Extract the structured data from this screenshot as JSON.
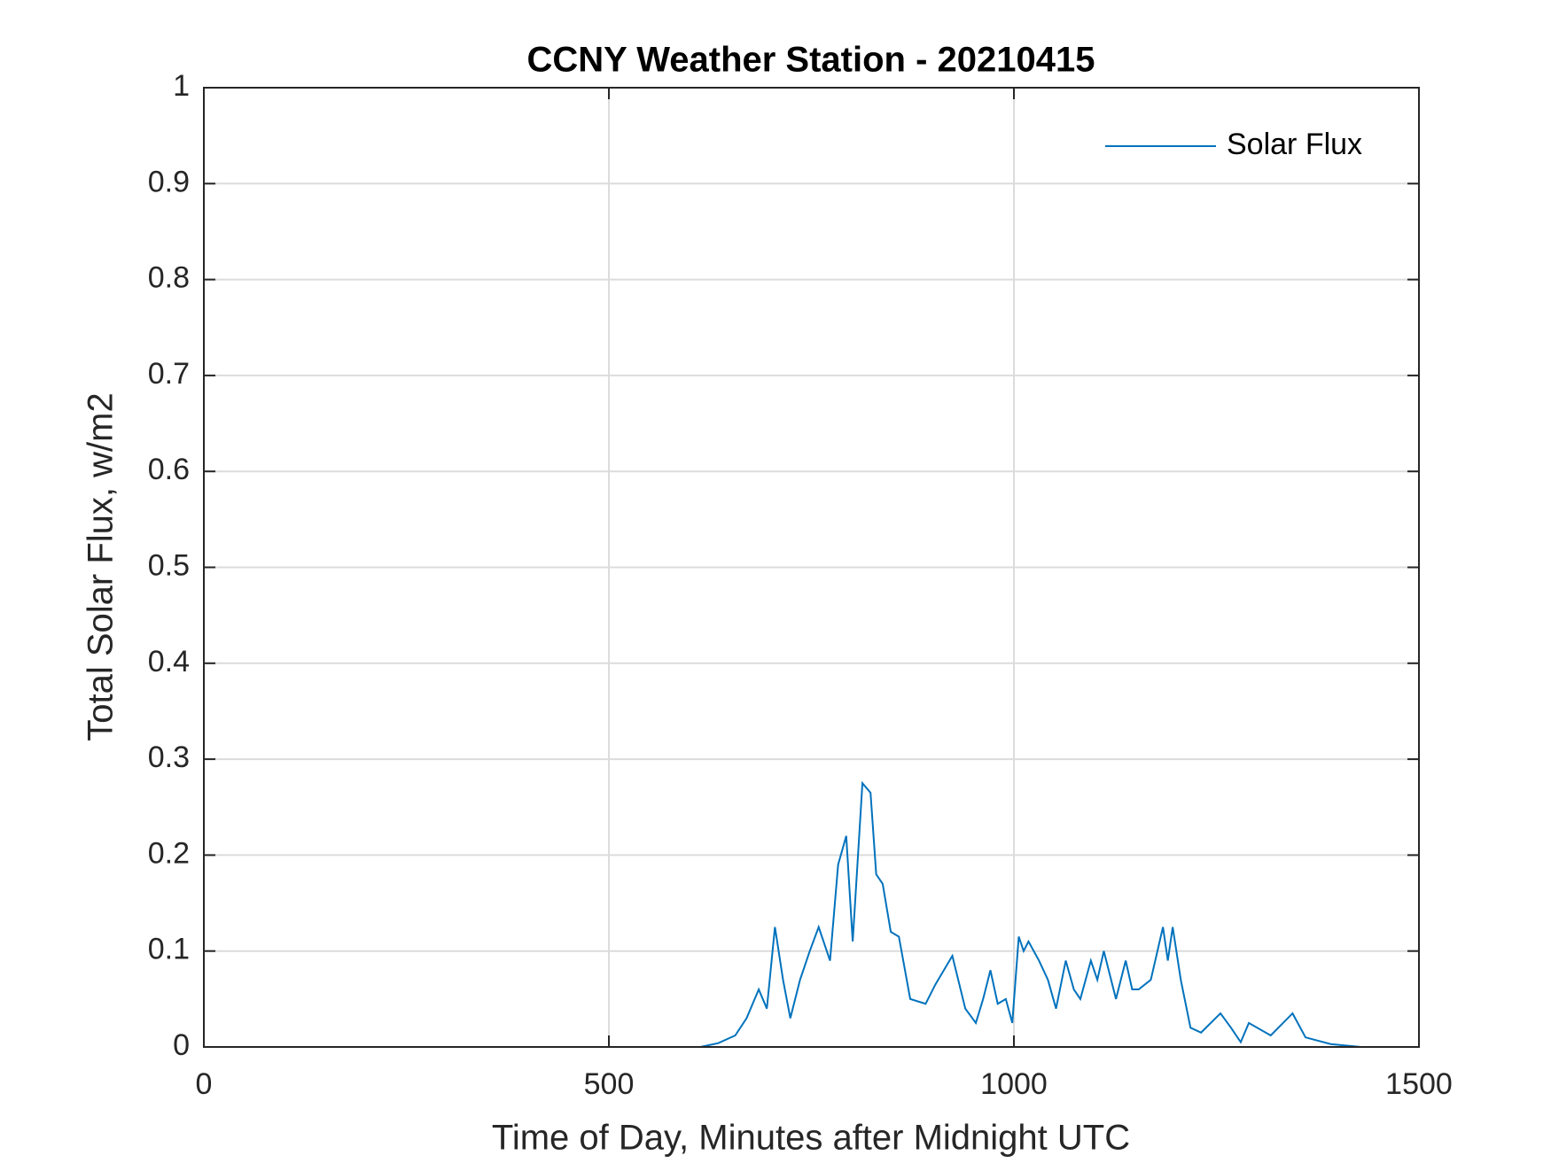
{
  "chart_data": {
    "type": "line",
    "title": "CCNY Weather Station - 20210415",
    "x_label": "Time of Day, Minutes after Midnight UTC",
    "y_label": "Total Solar Flux, w/m2",
    "x": [
      0,
      300,
      613,
      635,
      656,
      670,
      685,
      695,
      705,
      715,
      724,
      736,
      748,
      759,
      773,
      783,
      793,
      801,
      813,
      823,
      830,
      838,
      848,
      858,
      872,
      891,
      903,
      924,
      940,
      953,
      962,
      971,
      980,
      990,
      998,
      1006,
      1012,
      1018,
      1031,
      1042,
      1052,
      1064,
      1074,
      1082,
      1095,
      1103,
      1111,
      1126,
      1138,
      1146,
      1154,
      1169,
      1184,
      1190,
      1196,
      1206,
      1218,
      1231,
      1255,
      1268,
      1280,
      1290,
      1317,
      1344,
      1360,
      1391,
      1428,
      1440
    ],
    "series": [
      {
        "name": "Solar Flux",
        "color": "#0072bd",
        "values": [
          0,
          0,
          0,
          0.004,
          0.012,
          0.03,
          0.06,
          0.04,
          0.125,
          0.07,
          0.03,
          0.07,
          0.1,
          0.125,
          0.09,
          0.19,
          0.22,
          0.11,
          0.275,
          0.265,
          0.18,
          0.17,
          0.12,
          0.115,
          0.05,
          0.045,
          0.065,
          0.095,
          0.04,
          0.025,
          0.05,
          0.08,
          0.045,
          0.05,
          0.025,
          0.115,
          0.1,
          0.11,
          0.09,
          0.07,
          0.04,
          0.09,
          0.06,
          0.05,
          0.09,
          0.07,
          0.1,
          0.05,
          0.09,
          0.06,
          0.06,
          0.07,
          0.125,
          0.09,
          0.125,
          0.07,
          0.02,
          0.015,
          0.035,
          0.02,
          0.005,
          0.025,
          0.012,
          0.035,
          0.01,
          0.003,
          0,
          0
        ]
      }
    ],
    "xlim": [
      0,
      1500
    ],
    "xticks": [
      0,
      500,
      1000,
      1500
    ],
    "ylim": [
      0,
      1
    ],
    "yticks": [
      0,
      0.1,
      0.2,
      0.3,
      0.4,
      0.5,
      0.6,
      0.7,
      0.8,
      0.9,
      1
    ],
    "grid": true,
    "legend": "top-right"
  }
}
